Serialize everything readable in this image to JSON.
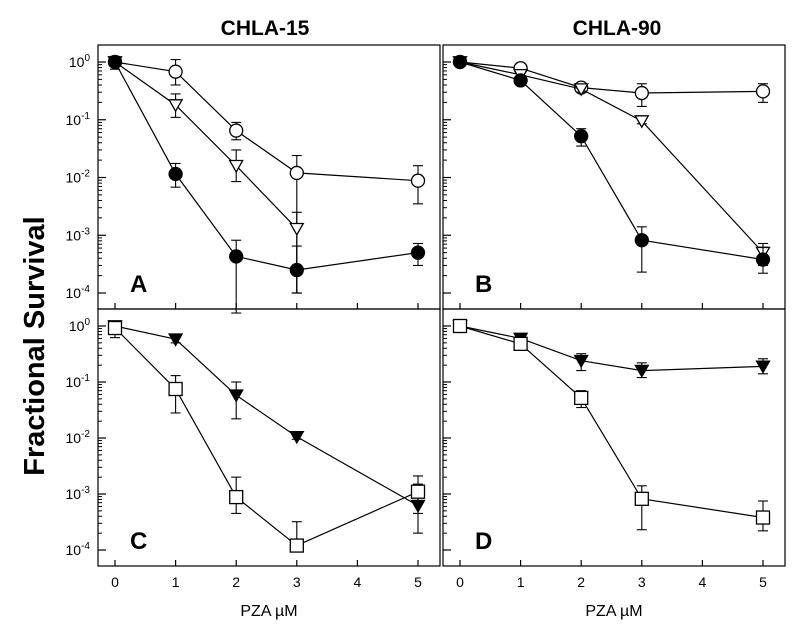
{
  "figure": {
    "column_titles": [
      "CHLA-15",
      "CHLA-90"
    ],
    "ylabel": "Fractional Survival",
    "xlabel": "PZA µM"
  },
  "chart_data": [
    {
      "type": "line",
      "panel": "A",
      "column": "CHLA-15",
      "yscale": "log",
      "ylim": [
        0.0001,
        1
      ],
      "y_tick_labels": [
        "10^0",
        "10^-1",
        "10^-2",
        "10^-3",
        "10^-4"
      ],
      "xlim": [
        0,
        5
      ],
      "x_ticks": [
        0,
        1,
        2,
        3,
        4,
        5
      ],
      "series": [
        {
          "marker": "open-circle",
          "x": [
            0,
            1,
            2,
            3,
            5
          ],
          "y": [
            1.0,
            0.68,
            0.065,
            0.012,
            0.0088
          ],
          "err_low": [
            0.75,
            0.4,
            0.045,
            0.0001,
            0.0035
          ],
          "err_high": [
            1.25,
            1.1,
            0.09,
            0.024,
            0.016
          ]
        },
        {
          "marker": "open-triangle-down",
          "x": [
            0,
            1,
            2,
            3
          ],
          "y": [
            1.0,
            0.18,
            0.016,
            0.0013
          ],
          "err_low": [
            0.85,
            0.11,
            0.0085,
            0.0001
          ],
          "err_high": [
            1.15,
            0.28,
            0.03,
            0.0025
          ]
        },
        {
          "marker": "filled-circle",
          "x": [
            0,
            1,
            2,
            3,
            5
          ],
          "y": [
            1.0,
            0.0115,
            0.00043,
            0.00025,
            0.0005
          ],
          "err_low": [
            0.9,
            0.0068,
            4.5e-05,
            0.0001,
            0.0003
          ],
          "err_high": [
            1.1,
            0.0175,
            0.00082,
            0.00065,
            0.00072
          ]
        }
      ]
    },
    {
      "type": "line",
      "panel": "B",
      "column": "CHLA-90",
      "yscale": "log",
      "ylim": [
        0.0001,
        1
      ],
      "xlim": [
        0,
        5
      ],
      "x_ticks": [
        0,
        1,
        2,
        3,
        4,
        5
      ],
      "series": [
        {
          "marker": "open-circle",
          "x": [
            0,
            1,
            2,
            3,
            5
          ],
          "y": [
            1.0,
            0.78,
            0.36,
            0.29,
            0.31
          ],
          "err_low": [
            0.9,
            0.7,
            0.3,
            0.17,
            0.2
          ],
          "err_high": [
            1.1,
            0.86,
            0.42,
            0.42,
            0.42
          ]
        },
        {
          "marker": "open-triangle-down",
          "x": [
            0,
            1,
            2,
            3,
            5
          ],
          "y": [
            1.0,
            0.6,
            0.34,
            0.095,
            0.0005
          ],
          "err_low": [
            0.9,
            0.52,
            0.3,
            0.085,
            0.0003
          ],
          "err_high": [
            1.1,
            0.68,
            0.38,
            0.105,
            0.00072
          ]
        },
        {
          "marker": "filled-circle",
          "x": [
            0,
            1,
            2,
            3,
            5
          ],
          "y": [
            1.0,
            0.48,
            0.052,
            0.00082,
            0.00038
          ],
          "err_low": [
            0.9,
            0.4,
            0.035,
            0.00023,
            0.00022
          ],
          "err_high": [
            1.1,
            0.56,
            0.07,
            0.0014,
            0.00062
          ]
        }
      ]
    },
    {
      "type": "line",
      "panel": "C",
      "column": "CHLA-15",
      "yscale": "log",
      "ylim": [
        0.0001,
        1
      ],
      "y_tick_labels": [
        "10^0",
        "10^-1",
        "10^-2",
        "10^-3",
        "10^-4"
      ],
      "xlim": [
        0,
        5
      ],
      "x_ticks": [
        0,
        1,
        2,
        3,
        4,
        5
      ],
      "series": [
        {
          "marker": "filled-triangle-down",
          "x": [
            0,
            1,
            2,
            3,
            5
          ],
          "y": [
            1.0,
            0.58,
            0.058,
            0.0105,
            0.00062
          ],
          "err_low": [
            0.9,
            0.5,
            0.022,
            0.0095,
            0.0002
          ],
          "err_high": [
            1.1,
            0.66,
            0.1,
            0.0115,
            0.0015
          ]
        },
        {
          "marker": "open-square",
          "x": [
            0,
            1,
            2,
            3,
            5
          ],
          "y": [
            0.92,
            0.075,
            0.00088,
            0.00012,
            0.0011
          ],
          "err_low": [
            0.62,
            0.028,
            0.00045,
            0.0001,
            0.00045
          ],
          "err_high": [
            1.2,
            0.13,
            0.002,
            0.00032,
            0.0021
          ]
        }
      ]
    },
    {
      "type": "line",
      "panel": "D",
      "column": "CHLA-90",
      "yscale": "log",
      "ylim": [
        0.0001,
        1
      ],
      "xlim": [
        0,
        5
      ],
      "x_ticks": [
        0,
        1,
        2,
        3,
        4,
        5
      ],
      "series": [
        {
          "marker": "filled-triangle-down",
          "x": [
            0,
            1,
            2,
            3,
            5
          ],
          "y": [
            1.0,
            0.6,
            0.24,
            0.16,
            0.19
          ],
          "err_low": [
            0.9,
            0.5,
            0.16,
            0.12,
            0.14
          ],
          "err_high": [
            1.1,
            0.72,
            0.32,
            0.22,
            0.26
          ]
        },
        {
          "marker": "open-square",
          "x": [
            0,
            1,
            2,
            3,
            5
          ],
          "y": [
            1.0,
            0.48,
            0.052,
            0.00082,
            0.00038
          ],
          "err_low": [
            0.9,
            0.4,
            0.035,
            0.00023,
            0.00022
          ],
          "err_high": [
            1.1,
            0.56,
            0.07,
            0.0014,
            0.00075
          ]
        }
      ]
    }
  ]
}
